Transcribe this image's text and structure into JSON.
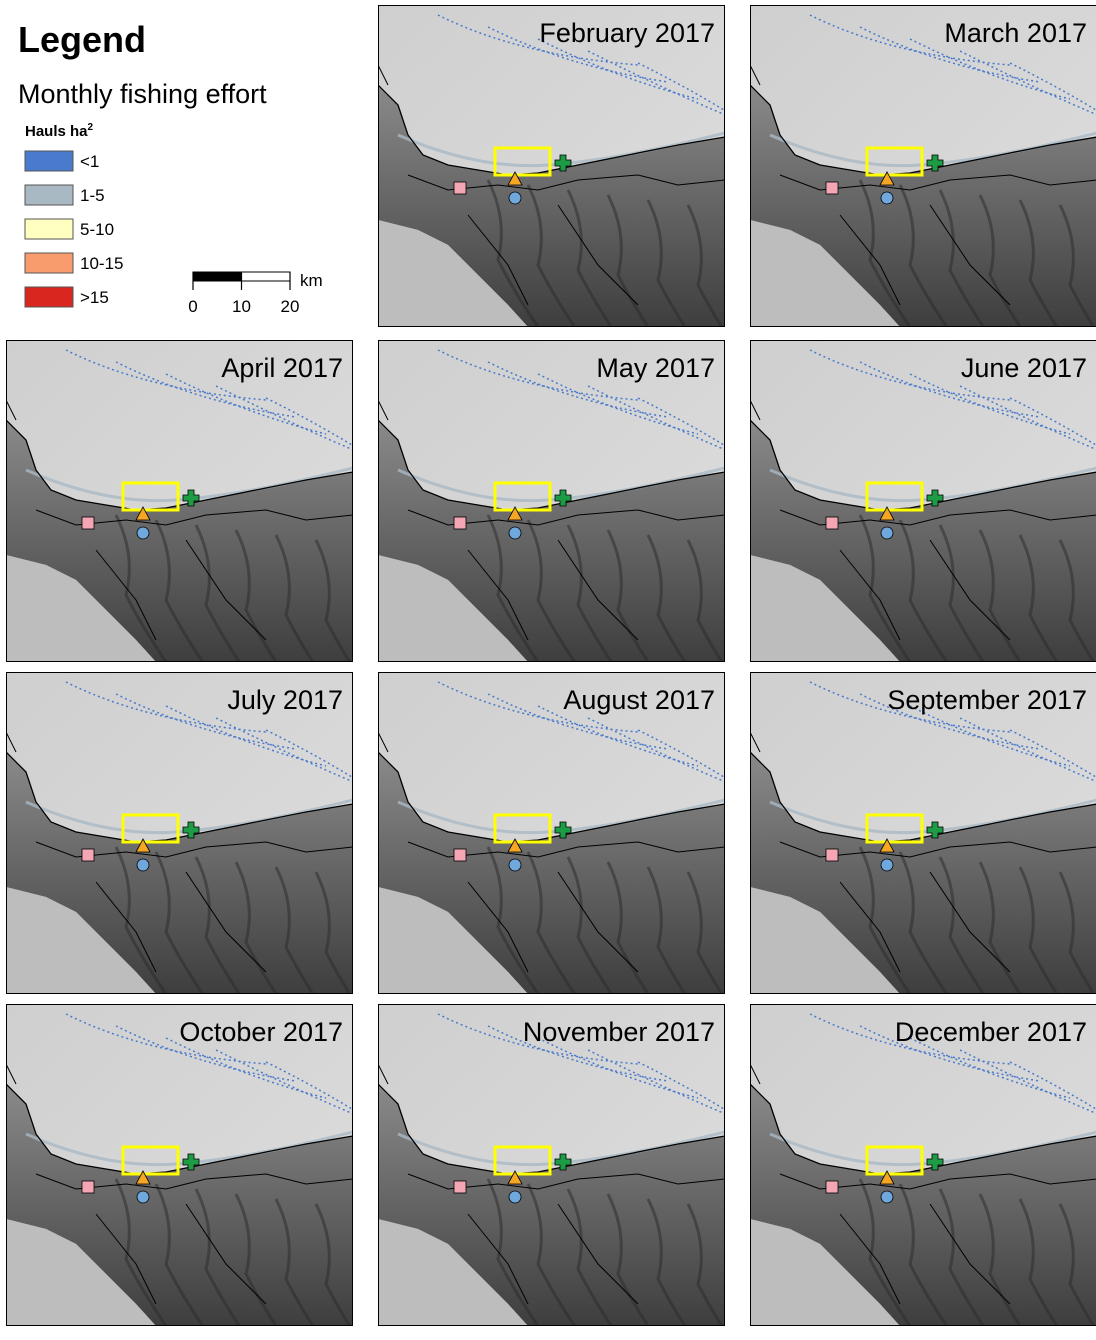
{
  "legend": {
    "title": "Legend",
    "subtitle": "Monthly fishing effort",
    "unit": "Hauls ha",
    "unit_sup": "2",
    "classes": [
      {
        "label": "<1",
        "color": "#4a7acb"
      },
      {
        "label": "1-5",
        "color": "#a9b9c4"
      },
      {
        "label": "5-10",
        "color": "#ffffc0"
      },
      {
        "label": "10-15",
        "color": "#f89c6e"
      },
      {
        "label": ">15",
        "color": "#d9271f"
      }
    ]
  },
  "scale_bar": {
    "unit": "km",
    "ticks": [
      0,
      10,
      20
    ]
  },
  "panels": [
    {
      "title": "February 2017"
    },
    {
      "title": "March 2017"
    },
    {
      "title": "April 2017"
    },
    {
      "title": "May 2017"
    },
    {
      "title": "June 2017"
    },
    {
      "title": "July 2017"
    },
    {
      "title": "August 2017"
    },
    {
      "title": "September 2017"
    },
    {
      "title": "October 2017"
    },
    {
      "title": "November 2017"
    },
    {
      "title": "December 2017"
    }
  ]
}
